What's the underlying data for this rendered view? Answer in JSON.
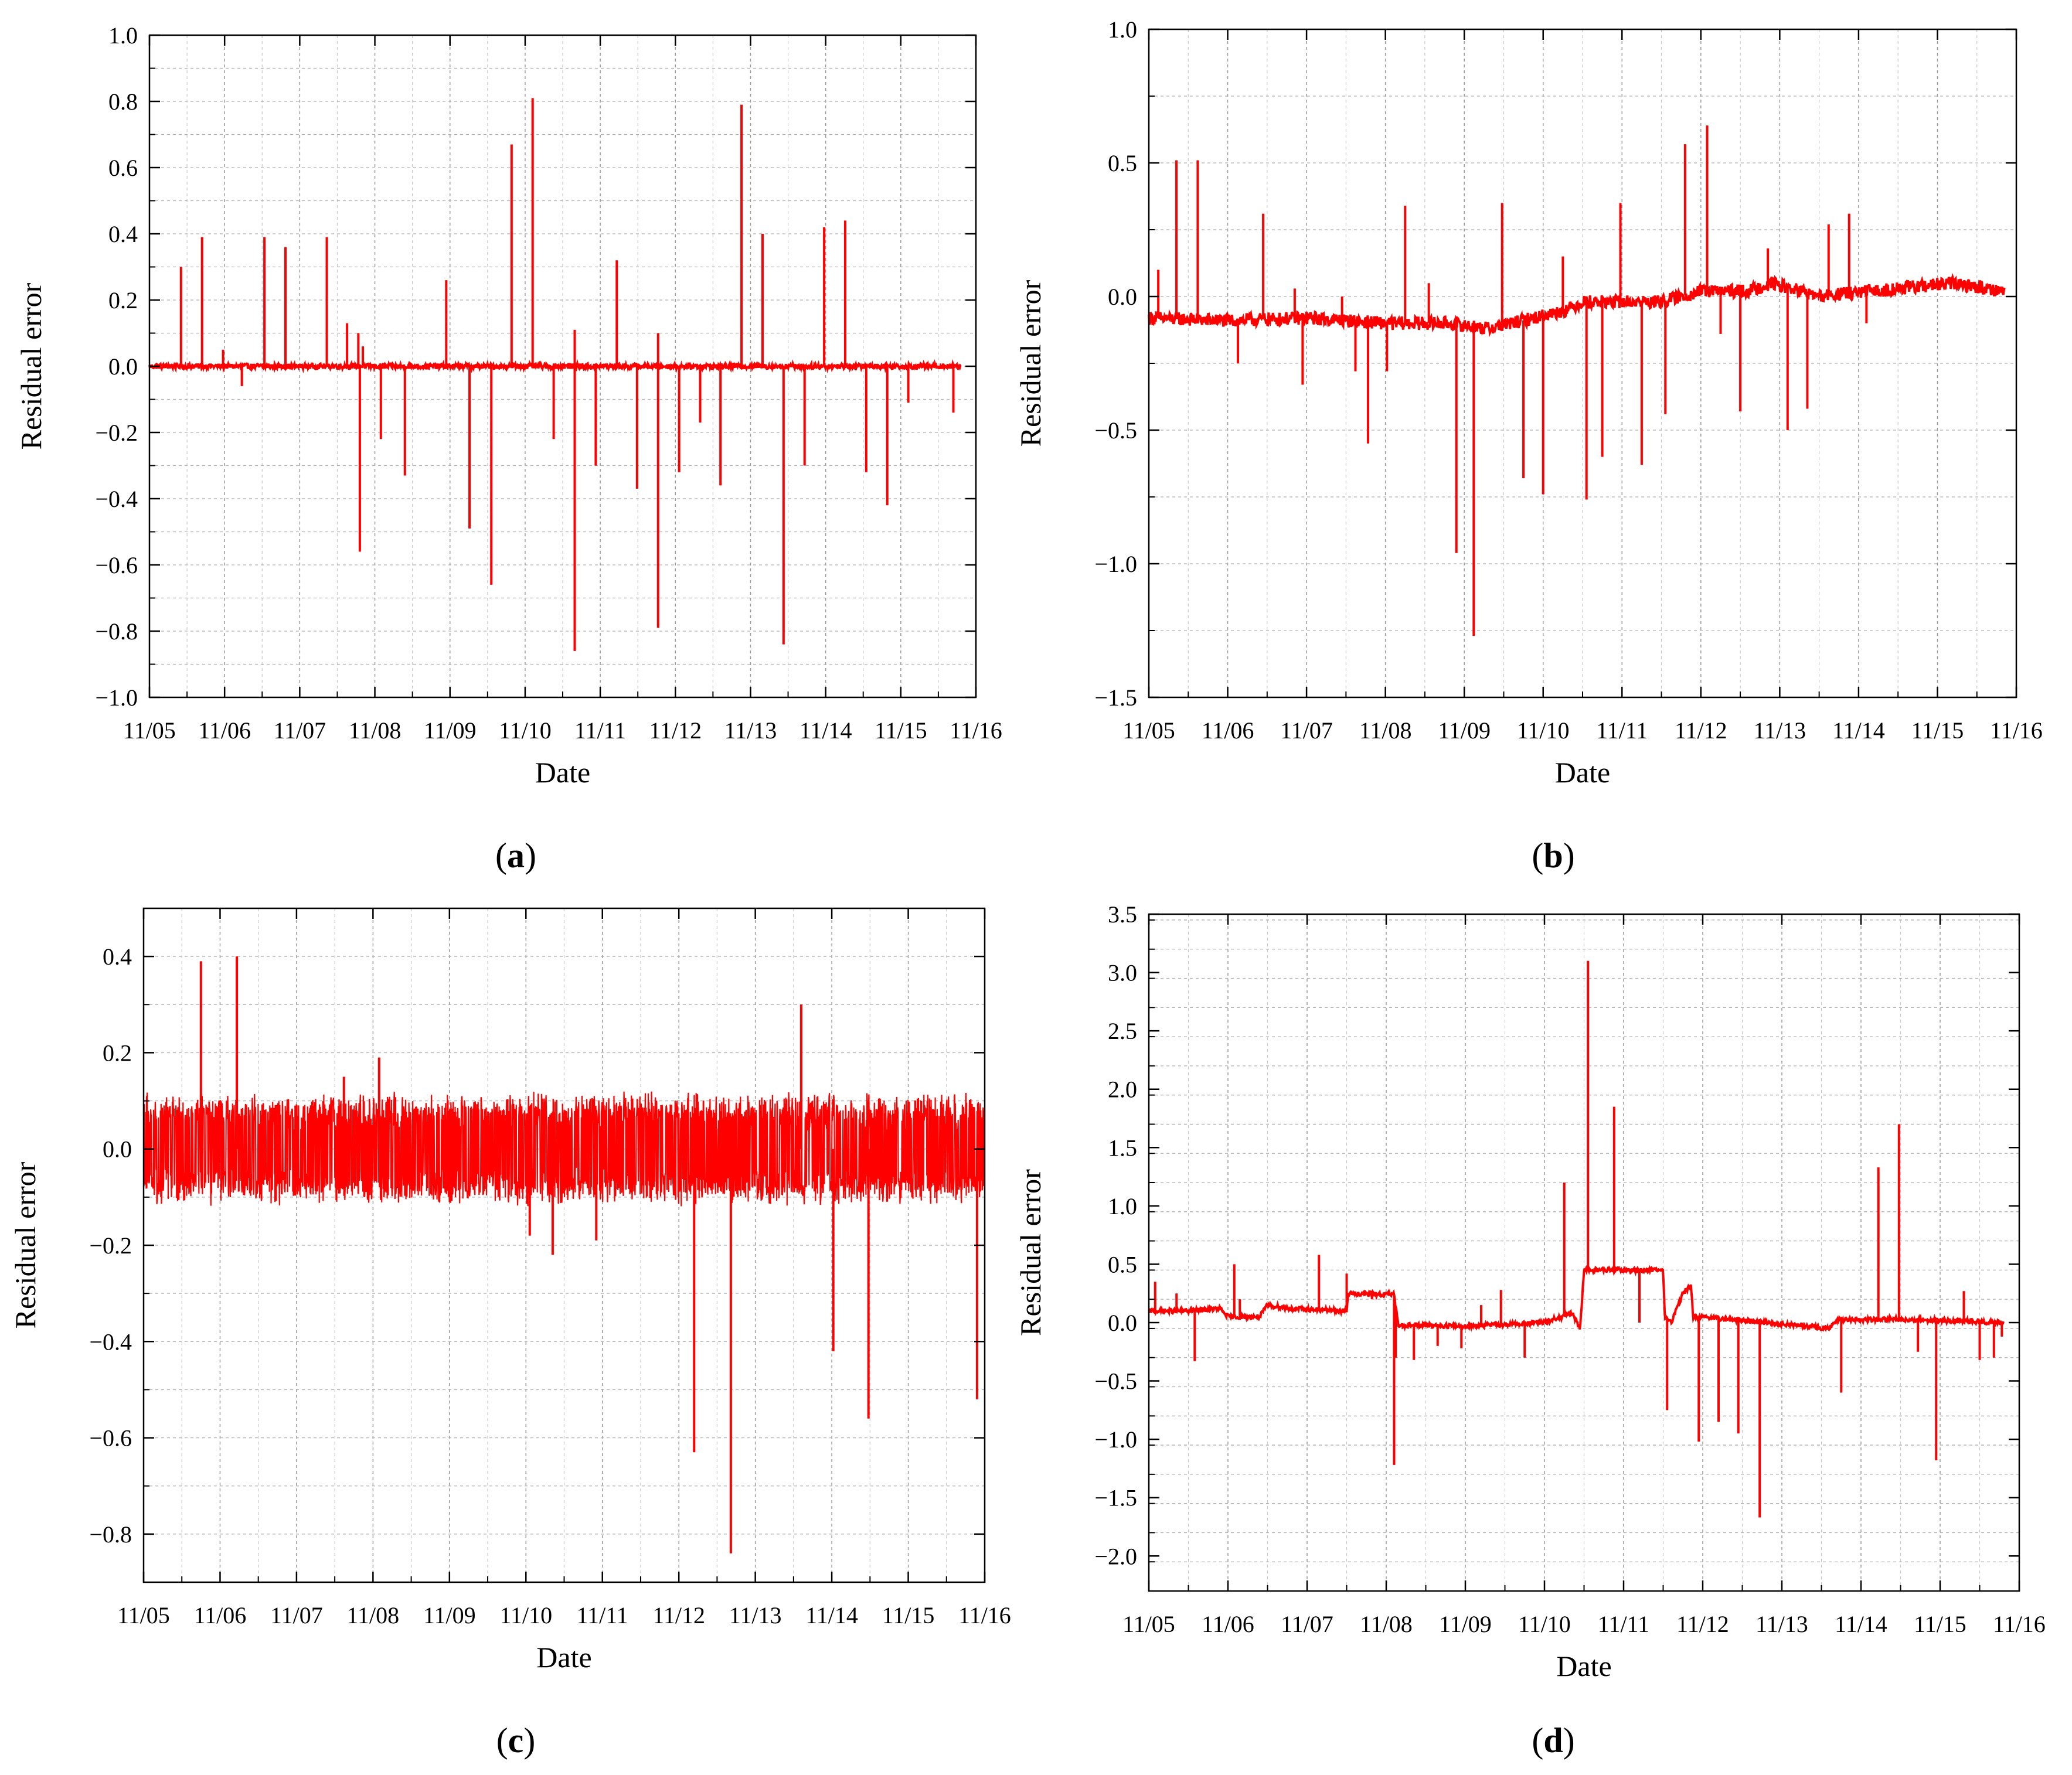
{
  "line_color": "#ff0000",
  "chart_data": [
    {
      "panel_label": "a",
      "type": "line",
      "xlabel": "Date",
      "ylabel": "Residual error",
      "x_ticks": [
        "11/05",
        "11/06",
        "11/07",
        "11/08",
        "11/09",
        "11/10",
        "11/11",
        "11/12",
        "11/13",
        "11/14",
        "11/15",
        "11/16"
      ],
      "xlim": [
        0,
        11
      ],
      "x_end": 10.8,
      "ylim": [
        -1.0,
        1.0
      ],
      "y_ticks": [
        -1.0,
        -0.8,
        -0.6,
        -0.4,
        -0.2,
        0.0,
        0.2,
        0.4,
        0.6,
        0.8,
        1.0
      ],
      "y_tick_labels": [
        "−1.0",
        "−0.8",
        "−0.6",
        "−0.4",
        "−0.2",
        "0.0",
        "0.2",
        "0.4",
        "0.6",
        "0.8",
        "1.0"
      ],
      "grid": true,
      "noise": 0.008,
      "baseline": [
        [
          0,
          0
        ],
        [
          10.8,
          0
        ]
      ],
      "spikes": [
        [
          0.42,
          0.3
        ],
        [
          0.7,
          0.39
        ],
        [
          0.98,
          0.05
        ],
        [
          1.23,
          -0.06
        ],
        [
          1.53,
          0.39
        ],
        [
          1.81,
          0.36
        ],
        [
          2.36,
          0.39
        ],
        [
          2.63,
          0.13
        ],
        [
          2.78,
          0.1
        ],
        [
          2.8,
          -0.56
        ],
        [
          2.84,
          0.06
        ],
        [
          3.08,
          -0.22
        ],
        [
          3.4,
          -0.33
        ],
        [
          3.95,
          0.26
        ],
        [
          4.26,
          -0.49
        ],
        [
          4.55,
          -0.66
        ],
        [
          4.82,
          0.67
        ],
        [
          5.1,
          0.81
        ],
        [
          5.38,
          -0.22
        ],
        [
          5.66,
          0.11
        ],
        [
          5.66,
          -0.86
        ],
        [
          5.94,
          -0.3
        ],
        [
          6.22,
          0.32
        ],
        [
          6.49,
          -0.37
        ],
        [
          6.77,
          0.1
        ],
        [
          6.77,
          -0.79
        ],
        [
          7.05,
          -0.32
        ],
        [
          7.33,
          -0.17
        ],
        [
          7.6,
          -0.36
        ],
        [
          7.88,
          0.79
        ],
        [
          8.16,
          0.4
        ],
        [
          8.44,
          -0.84
        ],
        [
          8.72,
          -0.3
        ],
        [
          8.98,
          0.42
        ],
        [
          9.26,
          0.44
        ],
        [
          9.54,
          -0.32
        ],
        [
          9.82,
          -0.42
        ],
        [
          10.1,
          -0.11
        ],
        [
          10.7,
          -0.14
        ]
      ]
    },
    {
      "panel_label": "b",
      "type": "line",
      "xlabel": "Date",
      "ylabel": "Residual error",
      "x_ticks": [
        "11/05",
        "11/06",
        "11/07",
        "11/08",
        "11/09",
        "11/10",
        "11/11",
        "11/12",
        "11/13",
        "11/14",
        "11/15",
        "11/16"
      ],
      "xlim": [
        0,
        11
      ],
      "x_end": 10.85,
      "ylim": [
        -1.5,
        1.0
      ],
      "y_ticks": [
        -1.5,
        -1.0,
        -0.5,
        0.0,
        0.5,
        1.0
      ],
      "y_tick_labels": [
        "−1.5",
        "−1.0",
        "−0.5",
        "0.0",
        "0.5",
        "1.0"
      ],
      "grid": true,
      "noise": 0.025,
      "baseline": [
        [
          0,
          -0.08
        ],
        [
          1.0,
          -0.09
        ],
        [
          2.0,
          -0.08
        ],
        [
          3.0,
          -0.1
        ],
        [
          3.8,
          -0.1
        ],
        [
          4.3,
          -0.12
        ],
        [
          4.6,
          -0.1
        ],
        [
          5.3,
          -0.05
        ],
        [
          5.5,
          -0.02
        ],
        [
          6.5,
          -0.02
        ],
        [
          7.0,
          0.02
        ],
        [
          7.6,
          0.02
        ],
        [
          7.9,
          0.05
        ],
        [
          8.5,
          0.0
        ],
        [
          9.5,
          0.03
        ],
        [
          10.2,
          0.05
        ],
        [
          10.85,
          0.02
        ]
      ],
      "spikes": [
        [
          0.12,
          0.1
        ],
        [
          0.35,
          0.51
        ],
        [
          0.62,
          0.51
        ],
        [
          1.13,
          -0.25
        ],
        [
          1.45,
          0.31
        ],
        [
          1.85,
          0.03
        ],
        [
          1.95,
          -0.33
        ],
        [
          2.45,
          0.0
        ],
        [
          2.62,
          -0.28
        ],
        [
          2.78,
          -0.55
        ],
        [
          3.02,
          -0.28
        ],
        [
          3.25,
          0.34
        ],
        [
          3.55,
          0.05
        ],
        [
          3.9,
          -0.96
        ],
        [
          4.12,
          -1.27
        ],
        [
          4.48,
          0.35
        ],
        [
          4.75,
          -0.68
        ],
        [
          5.0,
          -0.74
        ],
        [
          5.25,
          0.15
        ],
        [
          5.55,
          -0.76
        ],
        [
          5.75,
          -0.6
        ],
        [
          5.98,
          0.35
        ],
        [
          6.25,
          -0.63
        ],
        [
          6.55,
          -0.44
        ],
        [
          6.8,
          0.57
        ],
        [
          7.08,
          0.64
        ],
        [
          7.25,
          -0.14
        ],
        [
          7.5,
          -0.43
        ],
        [
          7.85,
          0.18
        ],
        [
          8.1,
          -0.5
        ],
        [
          8.35,
          -0.42
        ],
        [
          8.62,
          0.27
        ],
        [
          8.88,
          0.31
        ],
        [
          9.1,
          -0.1
        ]
      ]
    },
    {
      "panel_label": "c",
      "type": "line",
      "xlabel": "Date",
      "ylabel": "Residual error",
      "x_ticks": [
        "11/05",
        "11/06",
        "11/07",
        "11/08",
        "11/09",
        "11/10",
        "11/11",
        "11/12",
        "11/13",
        "11/14",
        "11/15",
        "11/16"
      ],
      "xlim": [
        0,
        11
      ],
      "x_end": 11,
      "ylim": [
        -0.9,
        0.5
      ],
      "y_ticks": [
        -0.8,
        -0.6,
        -0.4,
        -0.2,
        0.0,
        0.2,
        0.4
      ],
      "y_tick_labels": [
        "−0.8",
        "−0.6",
        "−0.4",
        "−0.2",
        "0.0",
        "0.2",
        "0.4"
      ],
      "grid": true,
      "noise": 0.1,
      "baseline": [
        [
          0,
          0
        ],
        [
          11,
          0
        ]
      ],
      "spikes": [
        [
          0.75,
          0.39
        ],
        [
          1.22,
          0.4
        ],
        [
          2.62,
          0.15
        ],
        [
          3.08,
          0.19
        ],
        [
          5.05,
          -0.18
        ],
        [
          5.35,
          -0.22
        ],
        [
          5.92,
          -0.19
        ],
        [
          7.2,
          -0.63
        ],
        [
          7.68,
          -0.84
        ],
        [
          8.6,
          0.3
        ],
        [
          9.02,
          -0.42
        ],
        [
          9.48,
          -0.56
        ],
        [
          10.9,
          -0.52
        ]
      ]
    },
    {
      "panel_label": "d",
      "type": "line",
      "xlabel": "Date",
      "ylabel": "Residual error",
      "x_ticks": [
        "11/05",
        "11/06",
        "11/07",
        "11/08",
        "11/09",
        "11/10",
        "11/11",
        "11/12",
        "11/13",
        "11/14",
        "11/15",
        "11/16"
      ],
      "xlim": [
        0,
        11
      ],
      "x_end": 10.8,
      "ylim": [
        -2.3,
        3.5
      ],
      "y_ticks": [
        -2.0,
        -1.5,
        -1.0,
        -0.5,
        0.0,
        0.5,
        1.0,
        1.5,
        2.0,
        2.5,
        3.0,
        3.5
      ],
      "y_tick_labels": [
        "−2.0",
        "−1.5",
        "−1.0",
        "−0.5",
        "0.0",
        "0.5",
        "1.0",
        "1.5",
        "2.0",
        "2.5",
        "3.0",
        "3.5"
      ],
      "grid": true,
      "noise": 0.02,
      "baseline": [
        [
          0,
          0.1
        ],
        [
          0.5,
          0.1
        ],
        [
          0.9,
          0.12
        ],
        [
          1.0,
          0.05
        ],
        [
          1.4,
          0.05
        ],
        [
          1.5,
          0.15
        ],
        [
          1.8,
          0.12
        ],
        [
          2.5,
          0.1
        ],
        [
          2.52,
          0.25
        ],
        [
          3.1,
          0.24
        ],
        [
          3.15,
          -0.02
        ],
        [
          4.0,
          -0.03
        ],
        [
          5.0,
          0.0
        ],
        [
          5.35,
          0.08
        ],
        [
          5.45,
          -0.05
        ],
        [
          5.5,
          0.45
        ],
        [
          6.5,
          0.45
        ],
        [
          6.52,
          0.05
        ],
        [
          6.6,
          0.0
        ],
        [
          6.75,
          0.25
        ],
        [
          6.85,
          0.32
        ],
        [
          6.88,
          0.05
        ],
        [
          7.5,
          0.02
        ],
        [
          8.6,
          -0.05
        ],
        [
          8.7,
          0.02
        ],
        [
          9.5,
          0.03
        ],
        [
          10.8,
          0.0
        ]
      ],
      "spikes": [
        [
          0.08,
          0.35
        ],
        [
          0.35,
          0.25
        ],
        [
          0.58,
          -0.33
        ],
        [
          1.08,
          0.5
        ],
        [
          1.15,
          0.2
        ],
        [
          2.15,
          0.58
        ],
        [
          2.5,
          0.42
        ],
        [
          2.82,
          0.2
        ],
        [
          3.1,
          -1.22
        ],
        [
          3.12,
          -0.3
        ],
        [
          3.35,
          -0.32
        ],
        [
          3.65,
          -0.2
        ],
        [
          3.95,
          -0.22
        ],
        [
          4.2,
          0.15
        ],
        [
          4.45,
          0.28
        ],
        [
          4.75,
          -0.3
        ],
        [
          5.25,
          1.2
        ],
        [
          5.55,
          3.1
        ],
        [
          5.88,
          1.85
        ],
        [
          6.2,
          0.0
        ],
        [
          6.55,
          -0.75
        ],
        [
          6.95,
          -1.02
        ],
        [
          7.2,
          -0.85
        ],
        [
          7.45,
          -0.95
        ],
        [
          7.72,
          -1.67
        ],
        [
          8.75,
          -0.6
        ],
        [
          9.22,
          1.33
        ],
        [
          9.48,
          1.7
        ],
        [
          9.72,
          -0.25
        ],
        [
          9.95,
          -1.18
        ],
        [
          10.3,
          0.27
        ],
        [
          10.5,
          -0.32
        ],
        [
          10.68,
          -0.3
        ],
        [
          10.78,
          -0.12
        ]
      ]
    }
  ]
}
